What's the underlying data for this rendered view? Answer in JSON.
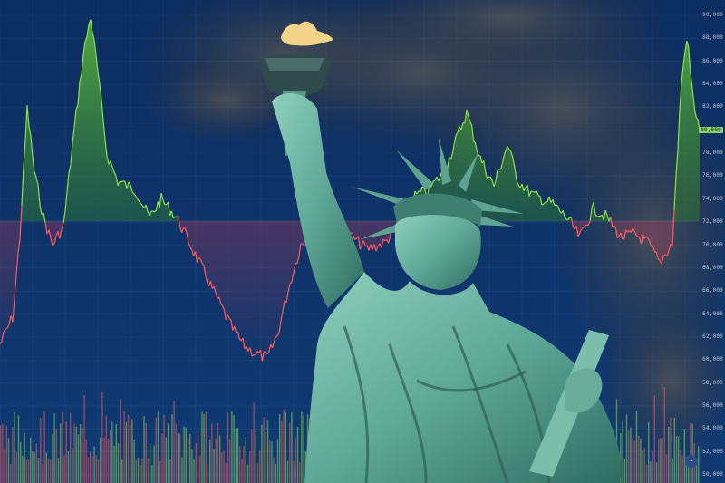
{
  "price_axis": {
    "ticks": [
      "90,000",
      "88,000",
      "86,000",
      "84,000",
      "82,000",
      "80,000",
      "78,000",
      "76,000",
      "74,000",
      "72,000",
      "70,000",
      "68,000",
      "66,000",
      "64,000",
      "62,000",
      "60,000",
      "58,000",
      "56,000",
      "54,000",
      "52,000",
      "50,000"
    ],
    "highlight": "80,000"
  },
  "colors": {
    "background_top": "#0b2f63",
    "background_bottom": "#123a72",
    "up": "#8be04a",
    "down": "#ff5a5a",
    "statue": "#6fb7a6",
    "cloud": "#3e434c"
  },
  "nav_icon": "chevron-right-icon",
  "nav_glyph": "›"
}
